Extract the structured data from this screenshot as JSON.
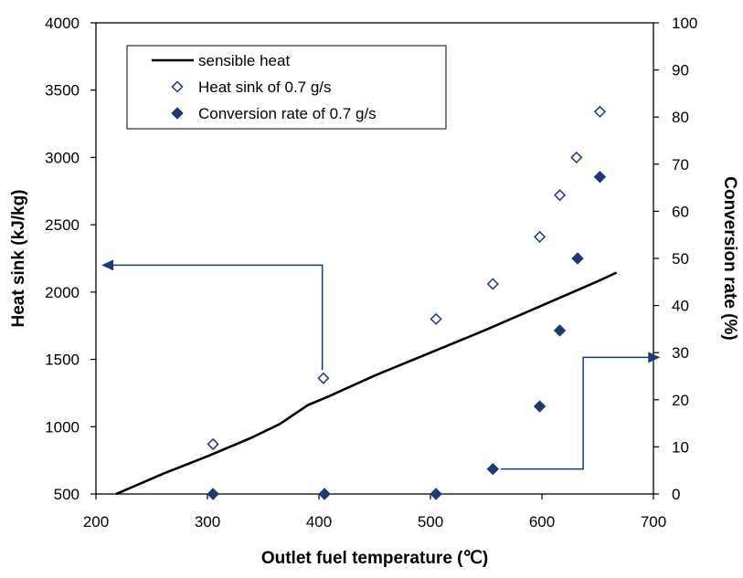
{
  "chart_data": {
    "type": "scatter",
    "xlabel": "Outlet fuel temperature (℃)",
    "ylabel": "Heat sink (kJ/kg)",
    "y2label": "Conversion rate (%)",
    "xlim": [
      200,
      700
    ],
    "ylim": [
      500,
      4000
    ],
    "y2lim": [
      0,
      100
    ],
    "x_ticks": [
      "200",
      "300",
      "400",
      "500",
      "600",
      "700"
    ],
    "y_ticks": [
      "500",
      "1000",
      "1500",
      "2000",
      "2500",
      "3000",
      "3500",
      "4000"
    ],
    "y2_ticks": [
      "0",
      "10",
      "20",
      "30",
      "40",
      "50",
      "60",
      "70",
      "80",
      "90",
      "100"
    ],
    "grid": false,
    "legend_position": "top-left",
    "series": [
      {
        "name": "sensible heat",
        "kind": "line",
        "axis": "left",
        "color": "#000000",
        "x": [
          218,
          260,
          300,
          340,
          365,
          390,
          410,
          450,
          500,
          550,
          600,
          650,
          667
        ],
        "y": [
          500,
          650,
          780,
          920,
          1020,
          1160,
          1230,
          1380,
          1550,
          1720,
          1900,
          2080,
          2145
        ]
      },
      {
        "name": "Heat sink of 0.7 g/s",
        "kind": "scatter",
        "marker": "diamond-open",
        "axis": "left",
        "color": "#1f3a73",
        "x": [
          305,
          404,
          505,
          556,
          598,
          616,
          631,
          652
        ],
        "y": [
          870,
          1360,
          1800,
          2060,
          2410,
          2720,
          3000,
          3340
        ]
      },
      {
        "name": "Conversion rate of 0.7 g/s",
        "kind": "scatter",
        "marker": "diamond-filled",
        "axis": "right",
        "color": "#1f3a73",
        "x": [
          305,
          405,
          505,
          556,
          598,
          616,
          632,
          652
        ],
        "y": [
          0,
          0,
          0,
          5.3,
          18.6,
          34.7,
          50,
          67.3
        ]
      }
    ]
  }
}
